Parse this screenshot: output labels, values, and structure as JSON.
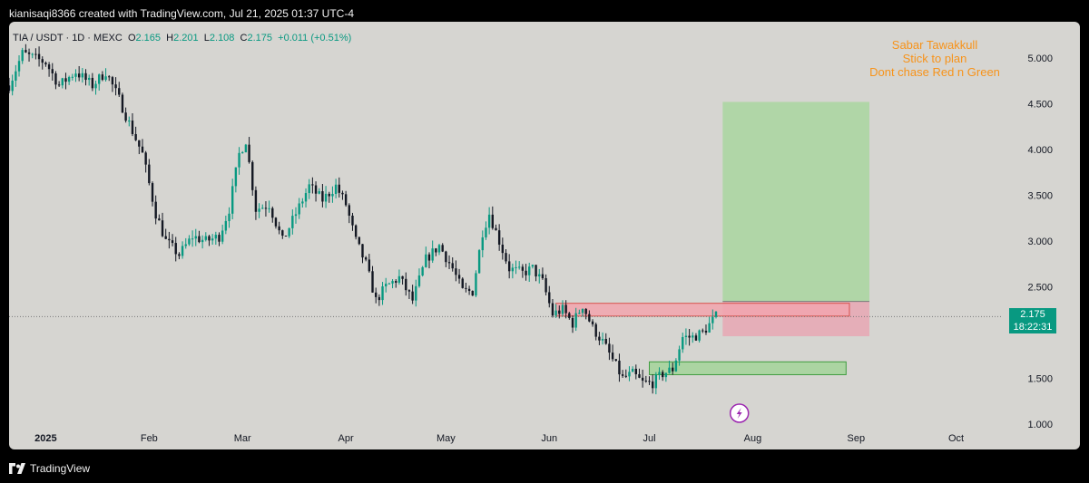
{
  "header": {
    "attribution": "kianisaqi8366 created with TradingView.com, Jul 21, 2025 01:37 UTC-4"
  },
  "legend": {
    "symbol": "TIA / USDT · 1D · MEXC",
    "open_label": "O",
    "open": "2.165",
    "high_label": "H",
    "high": "2.201",
    "low_label": "L",
    "low": "2.108",
    "close_label": "C",
    "close": "2.175",
    "change": "+0.011 (+0.51%)"
  },
  "annotation": {
    "lines": [
      "Sabar Tawakkull",
      "Stick to plan",
      "Dont chase Red n Green"
    ],
    "color": "#f7931a"
  },
  "price_tag": {
    "price": "2.175",
    "countdown": "18:22:31",
    "color": "#089981"
  },
  "footer": {
    "brand": "TradingView"
  },
  "colors": {
    "up": "#089981",
    "down": "#131722",
    "background": "#d6d5d1",
    "target_zone": "#a9d6a0",
    "stop_zone": "#e8a7b4",
    "red_box": "#f2a4ae",
    "green_box": "#a3d39a"
  },
  "chart_data": {
    "type": "candlestick",
    "symbol": "TIA / USDT",
    "interval": "1D",
    "exchange": "MEXC",
    "y_ticks": [
      "5.000",
      "4.500",
      "4.000",
      "3.500",
      "3.000",
      "2.500",
      "2.175",
      "1.500",
      "1.000"
    ],
    "y_tick_values": [
      5.0,
      4.5,
      4.0,
      3.5,
      3.0,
      2.5,
      1.5,
      1.0
    ],
    "ylim": [
      0.95,
      5.4
    ],
    "x_ticks": [
      "2025",
      "Feb",
      "Mar",
      "Apr",
      "May",
      "Jun",
      "Jul",
      "Aug",
      "Sep",
      "Oct"
    ],
    "x_tick_dates": [
      "2025-01-01",
      "2025-02-01",
      "2025-03-01",
      "2025-04-01",
      "2025-05-01",
      "2025-06-01",
      "2025-07-01",
      "2025-08-01",
      "2025-09-01",
      "2025-10-01"
    ],
    "xlim": [
      "2024-12-21",
      "2025-10-15"
    ],
    "last_price": 2.175,
    "closes": [
      {
        "date": "2024-12-21",
        "close": 4.7
      },
      {
        "date": "2024-12-25",
        "close": 5.05
      },
      {
        "date": "2025-01-01",
        "close": 4.95
      },
      {
        "date": "2025-01-05",
        "close": 4.7
      },
      {
        "date": "2025-01-10",
        "close": 4.85
      },
      {
        "date": "2025-01-15",
        "close": 4.7
      },
      {
        "date": "2025-01-19",
        "close": 4.85
      },
      {
        "date": "2025-01-23",
        "close": 4.55
      },
      {
        "date": "2025-01-27",
        "close": 4.2
      },
      {
        "date": "2025-01-30",
        "close": 3.95
      },
      {
        "date": "2025-02-03",
        "close": 3.3
      },
      {
        "date": "2025-02-06",
        "close": 3.0
      },
      {
        "date": "2025-02-10",
        "close": 2.85
      },
      {
        "date": "2025-02-14",
        "close": 3.05
      },
      {
        "date": "2025-02-18",
        "close": 3.0
      },
      {
        "date": "2025-02-22",
        "close": 3.05
      },
      {
        "date": "2025-02-25",
        "close": 3.35
      },
      {
        "date": "2025-02-28",
        "close": 3.95
      },
      {
        "date": "2025-03-02",
        "close": 4.1
      },
      {
        "date": "2025-03-05",
        "close": 3.35
      },
      {
        "date": "2025-03-09",
        "close": 3.4
      },
      {
        "date": "2025-03-13",
        "close": 3.0
      },
      {
        "date": "2025-03-17",
        "close": 3.3
      },
      {
        "date": "2025-03-21",
        "close": 3.6
      },
      {
        "date": "2025-03-25",
        "close": 3.45
      },
      {
        "date": "2025-03-29",
        "close": 3.6
      },
      {
        "date": "2025-04-01",
        "close": 3.4
      },
      {
        "date": "2025-04-04",
        "close": 3.0
      },
      {
        "date": "2025-04-07",
        "close": 2.75
      },
      {
        "date": "2025-04-10",
        "close": 2.35
      },
      {
        "date": "2025-04-13",
        "close": 2.5
      },
      {
        "date": "2025-04-17",
        "close": 2.6
      },
      {
        "date": "2025-04-21",
        "close": 2.35
      },
      {
        "date": "2025-04-25",
        "close": 2.8
      },
      {
        "date": "2025-04-29",
        "close": 2.95
      },
      {
        "date": "2025-05-03",
        "close": 2.7
      },
      {
        "date": "2025-05-06",
        "close": 2.45
      },
      {
        "date": "2025-05-09",
        "close": 2.45
      },
      {
        "date": "2025-05-12",
        "close": 3.1
      },
      {
        "date": "2025-05-14",
        "close": 3.3
      },
      {
        "date": "2025-05-17",
        "close": 3.0
      },
      {
        "date": "2025-05-20",
        "close": 2.7
      },
      {
        "date": "2025-05-24",
        "close": 2.65
      },
      {
        "date": "2025-05-27",
        "close": 2.7
      },
      {
        "date": "2025-05-30",
        "close": 2.55
      },
      {
        "date": "2025-06-02",
        "close": 2.2
      },
      {
        "date": "2025-06-05",
        "close": 2.25
      },
      {
        "date": "2025-06-08",
        "close": 2.1
      },
      {
        "date": "2025-06-11",
        "close": 2.3
      },
      {
        "date": "2025-06-14",
        "close": 2.05
      },
      {
        "date": "2025-06-17",
        "close": 1.9
      },
      {
        "date": "2025-06-20",
        "close": 1.7
      },
      {
        "date": "2025-06-23",
        "close": 1.5
      },
      {
        "date": "2025-06-26",
        "close": 1.55
      },
      {
        "date": "2025-06-29",
        "close": 1.45
      },
      {
        "date": "2025-07-02",
        "close": 1.45
      },
      {
        "date": "2025-07-05",
        "close": 1.55
      },
      {
        "date": "2025-07-08",
        "close": 1.6
      },
      {
        "date": "2025-07-11",
        "close": 1.95
      },
      {
        "date": "2025-07-14",
        "close": 1.95
      },
      {
        "date": "2025-07-17",
        "close": 2.0
      },
      {
        "date": "2025-07-21",
        "close": 2.175
      }
    ],
    "drawings": [
      {
        "kind": "target_zone",
        "date_from": "2025-07-23",
        "date_to": "2025-09-05",
        "price_from": 2.34,
        "price_to": 4.52
      },
      {
        "kind": "stop_zone",
        "date_from": "2025-07-23",
        "date_to": "2025-09-05",
        "price_from": 1.96,
        "price_to": 2.34
      },
      {
        "kind": "resistance_box",
        "date_from": "2025-06-03",
        "date_to": "2025-08-30",
        "price_from": 2.18,
        "price_to": 2.32
      },
      {
        "kind": "support_box",
        "date_from": "2025-07-01",
        "date_to": "2025-08-29",
        "price_from": 1.54,
        "price_to": 1.68
      }
    ]
  }
}
